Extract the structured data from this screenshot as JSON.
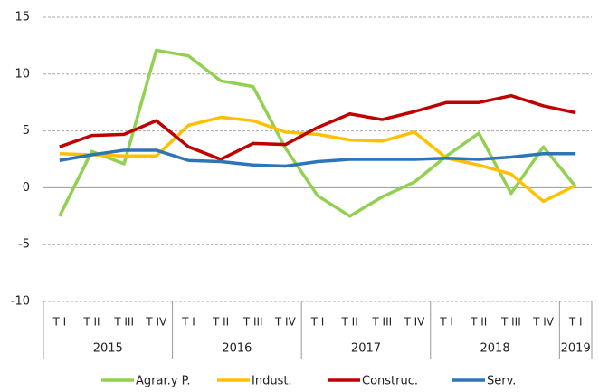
{
  "chart_data": {
    "type": "line",
    "categories": [
      "T I",
      "T II",
      "T III",
      "T IV",
      "T I",
      "T II",
      "T III",
      "T IV",
      "T I",
      "T II",
      "T III",
      "T IV",
      "T I",
      "T II",
      "T III",
      "T IV",
      "T I"
    ],
    "category_groups": [
      {
        "label": "2015",
        "span": 4
      },
      {
        "label": "2016",
        "span": 4
      },
      {
        "label": "2017",
        "span": 4
      },
      {
        "label": "2018",
        "span": 4
      },
      {
        "label": "2019",
        "span": 1
      }
    ],
    "series": [
      {
        "name": "Agrar.y P.",
        "color": "#92d050",
        "values": [
          -2.5,
          3.2,
          2.1,
          12.1,
          11.6,
          9.4,
          8.9,
          3.5,
          -0.7,
          -2.5,
          -0.8,
          0.5,
          2.8,
          4.8,
          -0.5,
          3.6,
          0.1
        ]
      },
      {
        "name": "Indust.",
        "color": "#ffc000",
        "values": [
          3.0,
          2.9,
          2.8,
          2.8,
          5.5,
          6.2,
          5.9,
          4.9,
          4.7,
          4.2,
          4.1,
          4.9,
          2.6,
          2.0,
          1.2,
          -1.2,
          0.2
        ]
      },
      {
        "name": "Construc.",
        "color": "#c00000",
        "values": [
          3.6,
          4.6,
          4.7,
          5.9,
          3.6,
          2.5,
          3.9,
          3.8,
          5.3,
          6.5,
          6.0,
          6.7,
          7.5,
          7.5,
          8.1,
          7.2,
          6.6
        ]
      },
      {
        "name": "Serv.",
        "color": "#2e75b6",
        "values": [
          2.4,
          2.9,
          3.3,
          3.3,
          2.4,
          2.3,
          2.0,
          1.9,
          2.3,
          2.5,
          2.5,
          2.5,
          2.6,
          2.5,
          2.7,
          3.0,
          3.0
        ]
      }
    ],
    "ylim": [
      -10,
      15
    ],
    "yticks": [
      -10,
      -5,
      0,
      5,
      10,
      15
    ],
    "grid": true,
    "legend": "bottom"
  }
}
